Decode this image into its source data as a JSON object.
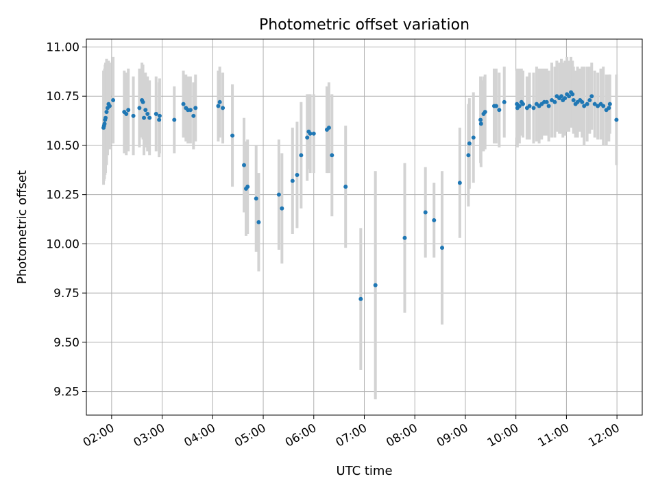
{
  "chart_data": {
    "type": "scatter",
    "title": "Photometric offset variation",
    "xlabel": "UTC time",
    "ylabel": "Photometric offset",
    "xlim": [
      1.5,
      12.5
    ],
    "ylim": [
      9.13,
      11.04
    ],
    "grid": true,
    "x_ticks": [
      {
        "value": 2,
        "label": "02:00"
      },
      {
        "value": 3,
        "label": "03:00"
      },
      {
        "value": 4,
        "label": "04:00"
      },
      {
        "value": 5,
        "label": "05:00"
      },
      {
        "value": 6,
        "label": "06:00"
      },
      {
        "value": 7,
        "label": "07:00"
      },
      {
        "value": 8,
        "label": "08:00"
      },
      {
        "value": 9,
        "label": "09:00"
      },
      {
        "value": 10,
        "label": "10:00"
      },
      {
        "value": 11,
        "label": "11:00"
      },
      {
        "value": 12,
        "label": "12:00"
      }
    ],
    "y_ticks": [
      {
        "value": 9.25,
        "label": "9.25"
      },
      {
        "value": 9.5,
        "label": "9.50"
      },
      {
        "value": 9.75,
        "label": "9.75"
      },
      {
        "value": 10.0,
        "label": "10.00"
      },
      {
        "value": 10.25,
        "label": "10.25"
      },
      {
        "value": 10.5,
        "label": "10.50"
      },
      {
        "value": 10.75,
        "label": "10.75"
      },
      {
        "value": 11.0,
        "label": "11.00"
      }
    ],
    "colors": {
      "point": "#1f77b4",
      "errorbar": "#d3d3d3",
      "grid": "#b0b0b0",
      "axes": "#000000"
    },
    "series": [
      {
        "name": "offset",
        "x": [
          1.84,
          1.85,
          1.86,
          1.87,
          1.88,
          1.9,
          1.92,
          1.94,
          1.96,
          2.03,
          2.25,
          2.29,
          2.33,
          2.43,
          2.55,
          2.6,
          2.62,
          2.64,
          2.67,
          2.71,
          2.75,
          2.88,
          2.94,
          2.95,
          3.24,
          3.42,
          3.47,
          3.51,
          3.56,
          3.62,
          3.66,
          4.11,
          4.14,
          4.2,
          4.39,
          4.62,
          4.66,
          4.69,
          4.86,
          4.91,
          5.31,
          5.37,
          5.58,
          5.67,
          5.75,
          5.87,
          5.9,
          5.93,
          6.0,
          6.26,
          6.3,
          6.36,
          6.63,
          6.93,
          7.22,
          7.8,
          8.21,
          8.38,
          8.54,
          8.89,
          9.06,
          9.08,
          9.16,
          9.3,
          9.31,
          9.36,
          9.39,
          9.57,
          9.61,
          9.67,
          9.77,
          10.02,
          10.03,
          10.07,
          10.11,
          10.14,
          10.22,
          10.27,
          10.35,
          10.41,
          10.46,
          10.51,
          10.56,
          10.61,
          10.65,
          10.71,
          10.77,
          10.81,
          10.86,
          10.9,
          10.93,
          10.97,
          11.01,
          11.05,
          11.09,
          11.12,
          11.14,
          11.18,
          11.22,
          11.27,
          11.31,
          11.35,
          11.41,
          11.46,
          11.5,
          11.56,
          11.62,
          11.68,
          11.73,
          11.79,
          11.84,
          11.86,
          11.99
        ],
        "y": [
          10.59,
          10.6,
          10.61,
          10.63,
          10.64,
          10.67,
          10.69,
          10.71,
          10.7,
          10.73,
          10.67,
          10.66,
          10.68,
          10.65,
          10.69,
          10.73,
          10.72,
          10.64,
          10.68,
          10.66,
          10.64,
          10.66,
          10.63,
          10.65,
          10.63,
          10.71,
          10.69,
          10.68,
          10.68,
          10.65,
          10.69,
          10.7,
          10.72,
          10.69,
          10.55,
          10.4,
          10.28,
          10.29,
          10.23,
          10.11,
          10.25,
          10.18,
          10.32,
          10.35,
          10.45,
          10.54,
          10.57,
          10.56,
          10.56,
          10.58,
          10.59,
          10.45,
          10.29,
          9.72,
          9.79,
          10.03,
          10.16,
          10.12,
          9.98,
          10.31,
          10.45,
          10.51,
          10.54,
          10.63,
          10.61,
          10.66,
          10.67,
          10.7,
          10.7,
          10.68,
          10.72,
          10.71,
          10.69,
          10.7,
          10.72,
          10.71,
          10.69,
          10.7,
          10.69,
          10.71,
          10.7,
          10.71,
          10.72,
          10.72,
          10.7,
          10.73,
          10.72,
          10.75,
          10.74,
          10.75,
          10.73,
          10.74,
          10.76,
          10.75,
          10.77,
          10.76,
          10.73,
          10.71,
          10.72,
          10.73,
          10.72,
          10.7,
          10.71,
          10.73,
          10.75,
          10.71,
          10.7,
          10.71,
          10.7,
          10.68,
          10.69,
          10.71,
          10.63
        ],
        "err": [
          0.29,
          0.28,
          0.28,
          0.28,
          0.28,
          0.27,
          0.24,
          0.22,
          0.22,
          0.22,
          0.21,
          0.21,
          0.21,
          0.2,
          0.2,
          0.19,
          0.19,
          0.19,
          0.19,
          0.19,
          0.19,
          0.19,
          0.19,
          0.19,
          0.17,
          0.17,
          0.17,
          0.17,
          0.17,
          0.17,
          0.17,
          0.18,
          0.18,
          0.18,
          0.26,
          0.24,
          0.24,
          0.24,
          0.27,
          0.25,
          0.28,
          0.28,
          0.27,
          0.27,
          0.27,
          0.22,
          0.19,
          0.2,
          0.2,
          0.22,
          0.23,
          0.31,
          0.31,
          0.36,
          0.58,
          0.38,
          0.23,
          0.19,
          0.39,
          0.28,
          0.26,
          0.23,
          0.23,
          0.22,
          0.22,
          0.19,
          0.19,
          0.19,
          0.19,
          0.19,
          0.18,
          0.17,
          0.2,
          0.19,
          0.17,
          0.17,
          0.16,
          0.17,
          0.18,
          0.19,
          0.19,
          0.18,
          0.17,
          0.17,
          0.18,
          0.19,
          0.18,
          0.18,
          0.18,
          0.19,
          0.19,
          0.19,
          0.19,
          0.18,
          0.18,
          0.17,
          0.17,
          0.17,
          0.18,
          0.16,
          0.18,
          0.2,
          0.19,
          0.17,
          0.17,
          0.17,
          0.17,
          0.18,
          0.2,
          0.18,
          0.17,
          0.15,
          0.23
        ]
      }
    ]
  }
}
